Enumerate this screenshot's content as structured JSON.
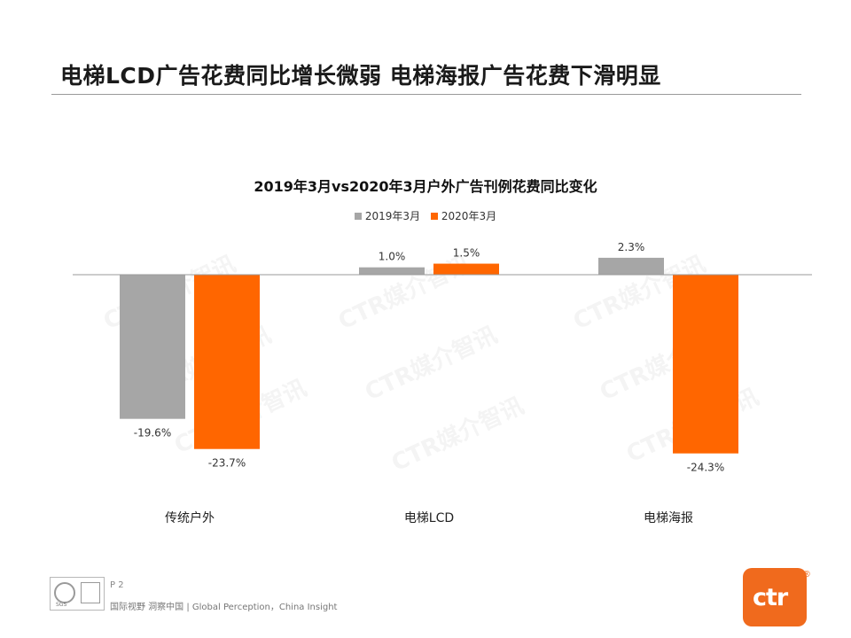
{
  "slide_title": "电梯LCD广告花费同比增长微弱 电梯海报广告花费下滑明显",
  "chart_data": {
    "type": "bar",
    "title": "2019年3月vs2020年3月户外广告刊例花费同比变化",
    "categories": [
      "传统户外",
      "电梯LCD",
      "电梯海报"
    ],
    "series": [
      {
        "name": "2019年3月",
        "values": [
          -19.6,
          1.0,
          2.3
        ],
        "labels": [
          "-19.6%",
          "1.0%",
          "2.3%"
        ],
        "color": "#a6a6a6"
      },
      {
        "name": "2020年3月",
        "values": [
          -23.7,
          1.5,
          -24.3
        ],
        "labels": [
          "-23.7%",
          "1.5%",
          "-24.3%"
        ],
        "color": "#ff6600"
      }
    ],
    "xlabel": "",
    "ylabel": "",
    "ylim": [
      -26,
      4
    ],
    "grid": false,
    "legend": "top-center"
  },
  "watermark_text": "CTR媒介智讯",
  "footer": {
    "page": "P 2",
    "slogan": "国际视野  洞察中国 |  Global Perception，China Insight",
    "cert_label": "SGS"
  },
  "logo": {
    "text": "ctr",
    "mark": "®",
    "brand_color": "#f06a1d"
  }
}
